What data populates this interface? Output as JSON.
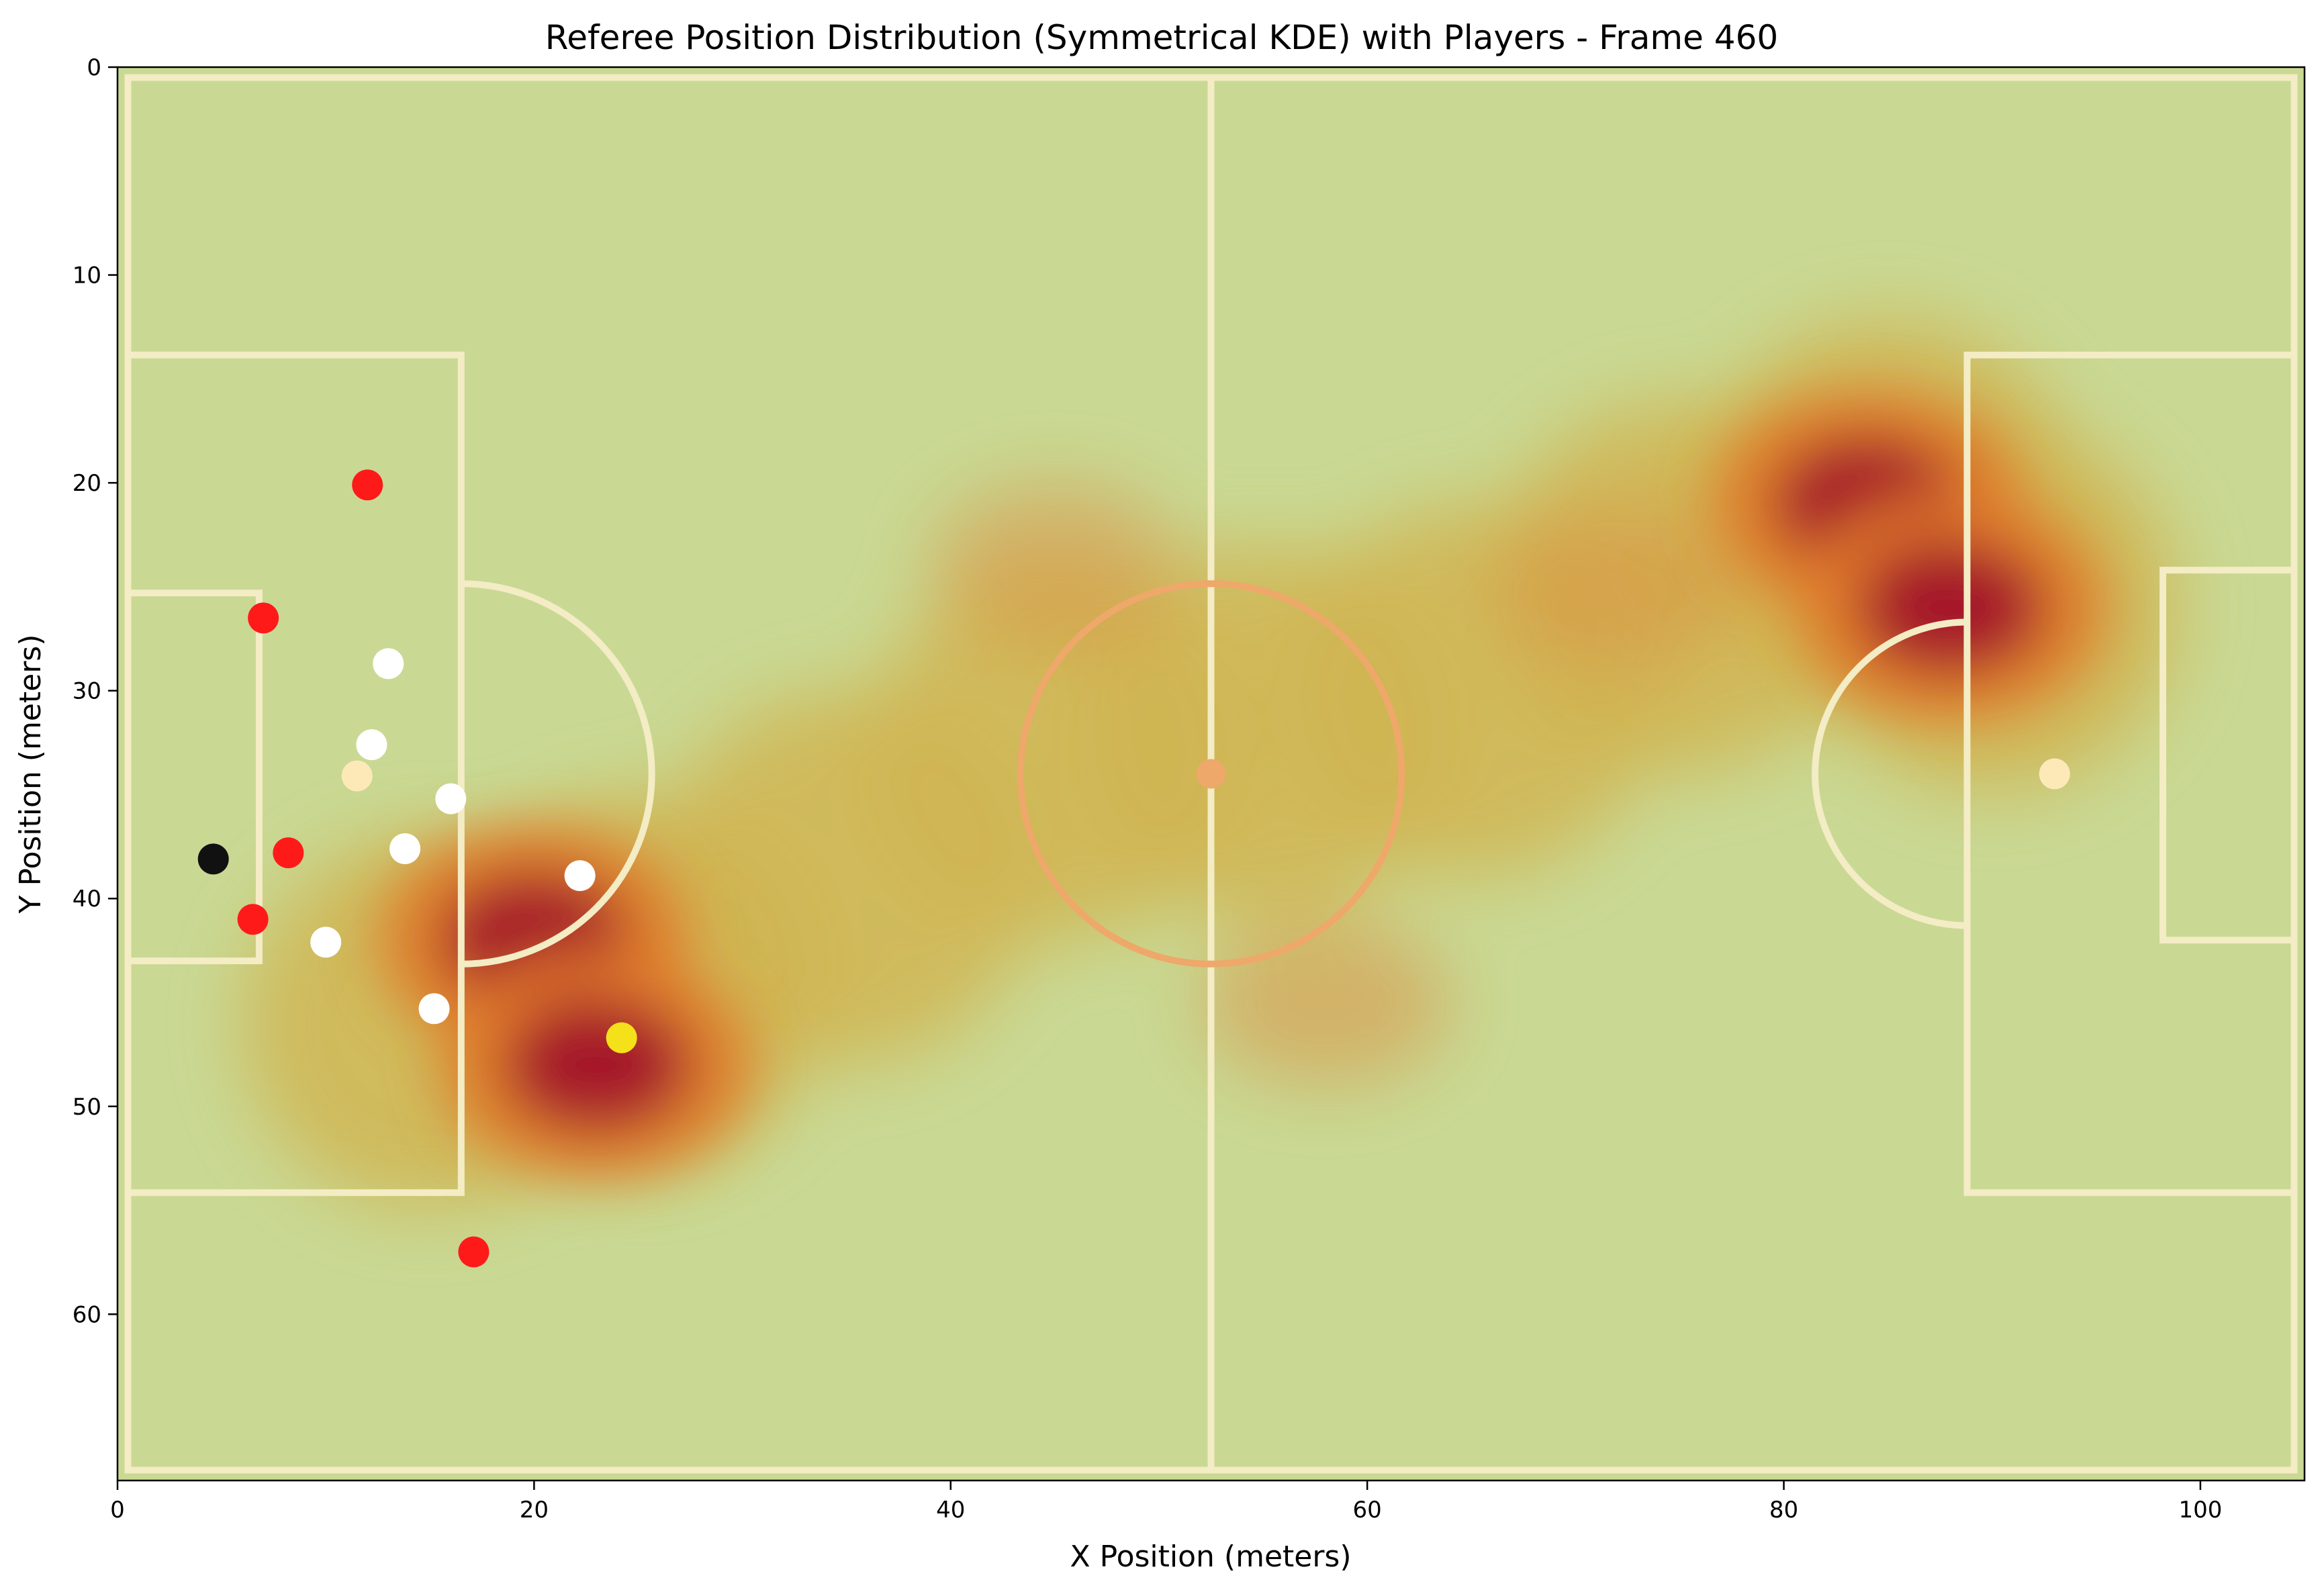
{
  "chart_data": {
    "type": "scatter",
    "title": "Referee Position Distribution (Symmetrical KDE) with Players - Frame 460",
    "xlabel": "X Position (meters)",
    "ylabel": "Y Position (meters)",
    "xlim": [
      0,
      105
    ],
    "ylim": [
      68,
      0
    ],
    "y_inverted": true,
    "x_ticks": [
      0,
      20,
      40,
      60,
      80,
      100
    ],
    "y_ticks": [
      0,
      10,
      20,
      30,
      40,
      50,
      60
    ],
    "grid": false,
    "legend": "none",
    "background": "football pitch with referee position KDE heatmap",
    "colors": {
      "pitch": "#c9d994",
      "pitch_lines": "#f3ecc4",
      "kde_low": "#d4a93c",
      "kde_mid": "#e07b2a",
      "kde_high": "#a2142a",
      "center_circle": "#eea86a"
    },
    "kde_hotspots": [
      {
        "x": 20,
        "y": 42,
        "level": "high"
      },
      {
        "x": 23,
        "y": 48,
        "level": "high"
      },
      {
        "x": 84,
        "y": 21,
        "level": "high"
      },
      {
        "x": 88,
        "y": 26,
        "level": "high"
      },
      {
        "x": 45,
        "y": 24,
        "level": "medium"
      },
      {
        "x": 58,
        "y": 45,
        "level": "medium"
      },
      {
        "x": 72,
        "y": 25,
        "level": "medium"
      }
    ],
    "series": [
      {
        "name": "",
        "color": "#ff1a1a",
        "points": [
          {
            "x": 12.0,
            "y": 20.1
          },
          {
            "x": 7.0,
            "y": 26.5
          },
          {
            "x": 8.2,
            "y": 37.8
          },
          {
            "x": 6.5,
            "y": 41.0
          },
          {
            "x": 17.1,
            "y": 57.0
          }
        ]
      },
      {
        "name": "",
        "color": "#ffffff",
        "points": [
          {
            "x": 13.0,
            "y": 28.7
          },
          {
            "x": 12.2,
            "y": 32.6
          },
          {
            "x": 16.0,
            "y": 35.2
          },
          {
            "x": 13.8,
            "y": 37.6
          },
          {
            "x": 10.0,
            "y": 42.1
          },
          {
            "x": 15.2,
            "y": 45.3
          },
          {
            "x": 22.2,
            "y": 38.9
          }
        ]
      },
      {
        "name": "",
        "color": "#fde9b8",
        "points": [
          {
            "x": 11.5,
            "y": 34.1
          },
          {
            "x": 93.0,
            "y": 34.0
          }
        ]
      },
      {
        "name": "",
        "color": "#111111",
        "points": [
          {
            "x": 4.6,
            "y": 38.1
          }
        ]
      },
      {
        "name": "",
        "color": "#f5e11a",
        "points": [
          {
            "x": 24.2,
            "y": 46.7
          }
        ]
      }
    ]
  }
}
